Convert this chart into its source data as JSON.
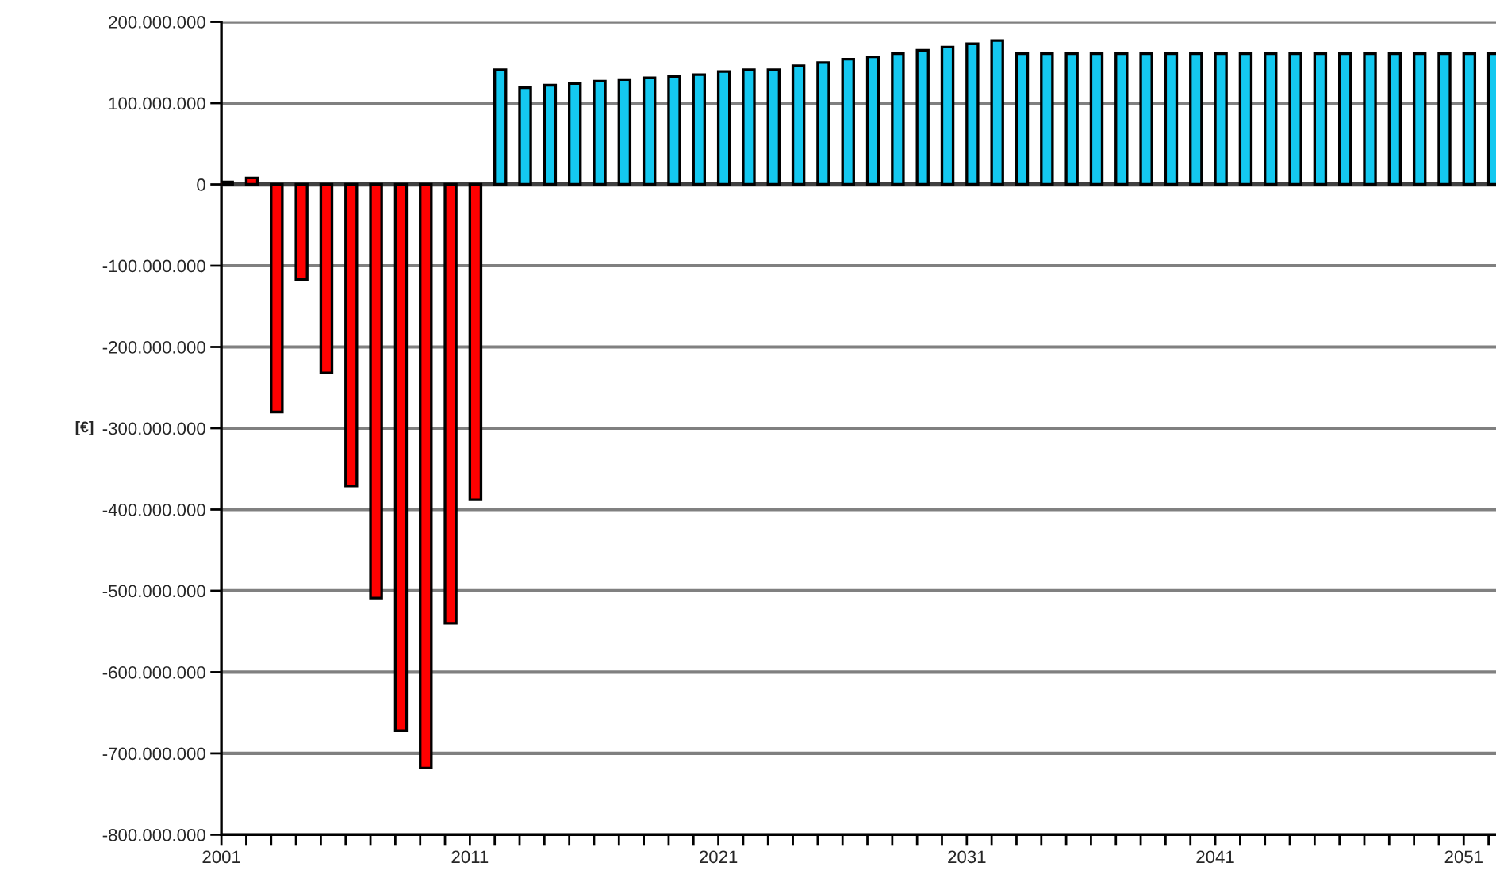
{
  "chart_data": {
    "type": "bar",
    "ylabel": "[€]",
    "x": [
      2001,
      2002,
      2003,
      2004,
      2005,
      2006,
      2007,
      2008,
      2009,
      2010,
      2011,
      2012,
      2013,
      2014,
      2015,
      2016,
      2017,
      2018,
      2019,
      2020,
      2021,
      2022,
      2023,
      2024,
      2025,
      2026,
      2027,
      2028,
      2029,
      2030,
      2031,
      2032,
      2033,
      2034,
      2035,
      2036,
      2037,
      2038,
      2039,
      2040,
      2041,
      2042,
      2043,
      2044,
      2045,
      2046,
      2047,
      2048,
      2049,
      2050,
      2051,
      2052
    ],
    "values": [
      3000000,
      8000000,
      -280000000,
      -117000000,
      -232000000,
      -371000000,
      -509000000,
      -672000000,
      -718000000,
      -540000000,
      -388000000,
      141000000,
      119000000,
      122000000,
      124000000,
      127000000,
      129000000,
      131000000,
      133000000,
      135000000,
      139000000,
      141000000,
      141000000,
      146000000,
      150000000,
      154000000,
      157000000,
      161000000,
      165000000,
      169000000,
      173000000,
      177000000,
      161000000,
      161000000,
      161000000,
      161000000,
      161000000,
      161000000,
      161000000,
      161000000,
      161000000,
      161000000,
      161000000,
      161000000,
      161000000,
      161000000,
      161000000,
      161000000,
      161000000,
      161000000,
      161000000,
      161000000
    ],
    "colors": [
      "#ff0000",
      "#ff0000",
      "#ff0000",
      "#ff0000",
      "#ff0000",
      "#ff0000",
      "#ff0000",
      "#ff0000",
      "#ff0000",
      "#ff0000",
      "#ff0000",
      "#14c8f0",
      "#14c8f0",
      "#14c8f0",
      "#14c8f0",
      "#14c8f0",
      "#14c8f0",
      "#14c8f0",
      "#14c8f0",
      "#14c8f0",
      "#14c8f0",
      "#14c8f0",
      "#14c8f0",
      "#14c8f0",
      "#14c8f0",
      "#14c8f0",
      "#14c8f0",
      "#14c8f0",
      "#14c8f0",
      "#14c8f0",
      "#14c8f0",
      "#14c8f0",
      "#14c8f0",
      "#14c8f0",
      "#14c8f0",
      "#14c8f0",
      "#14c8f0",
      "#14c8f0",
      "#14c8f0",
      "#14c8f0",
      "#14c8f0",
      "#14c8f0",
      "#14c8f0",
      "#14c8f0",
      "#14c8f0",
      "#14c8f0",
      "#14c8f0",
      "#14c8f0",
      "#14c8f0",
      "#14c8f0",
      "#14c8f0",
      "#14c8f0"
    ],
    "xlim": [
      2001,
      2052.3
    ],
    "xticks": [
      2001,
      {
        "value": 2002,
        "label": null
      },
      {
        "value": 2003,
        "label": null
      },
      {
        "value": 2004,
        "label": null
      },
      {
        "value": 2005,
        "label": null
      },
      {
        "value": 2006,
        "label": null
      },
      {
        "value": 2007,
        "label": null
      },
      {
        "value": 2008,
        "label": null
      },
      {
        "value": 2009,
        "label": null
      },
      {
        "value": 2010,
        "label": null
      },
      2011,
      {
        "value": 2012,
        "label": null
      },
      {
        "value": 2013,
        "label": null
      },
      {
        "value": 2014,
        "label": null
      },
      {
        "value": 2015,
        "label": null
      },
      {
        "value": 2016,
        "label": null
      },
      {
        "value": 2017,
        "label": null
      },
      {
        "value": 2018,
        "label": null
      },
      {
        "value": 2019,
        "label": null
      },
      {
        "value": 2020,
        "label": null
      },
      2021,
      {
        "value": 2022,
        "label": null
      },
      {
        "value": 2023,
        "label": null
      },
      {
        "value": 2024,
        "label": null
      },
      {
        "value": 2025,
        "label": null
      },
      {
        "value": 2026,
        "label": null
      },
      {
        "value": 2027,
        "label": null
      },
      {
        "value": 2028,
        "label": null
      },
      {
        "value": 2029,
        "label": null
      },
      {
        "value": 2030,
        "label": null
      },
      2031,
      {
        "value": 2032,
        "label": null
      },
      {
        "value": 2033,
        "label": null
      },
      {
        "value": 2034,
        "label": null
      },
      {
        "value": 2035,
        "label": null
      },
      {
        "value": 2036,
        "label": null
      },
      {
        "value": 2037,
        "label": null
      },
      {
        "value": 2038,
        "label": null
      },
      {
        "value": 2039,
        "label": null
      },
      {
        "value": 2040,
        "label": null
      },
      2041,
      {
        "value": 2042,
        "label": null
      },
      {
        "value": 2043,
        "label": null
      },
      {
        "value": 2044,
        "label": null
      },
      {
        "value": 2045,
        "label": null
      },
      {
        "value": 2046,
        "label": null
      },
      {
        "value": 2047,
        "label": null
      },
      {
        "value": 2048,
        "label": null
      },
      {
        "value": 2049,
        "label": null
      },
      {
        "value": 2050,
        "label": null
      },
      2051,
      {
        "value": 2052,
        "label": null
      }
    ],
    "ylim": [
      -800000000,
      200000000
    ],
    "yticks": [
      {
        "value": -800000000,
        "label": "-800.000.000"
      },
      {
        "value": -700000000,
        "label": "-700.000.000"
      },
      {
        "value": -600000000,
        "label": "-600.000.000"
      },
      {
        "value": -500000000,
        "label": "-500.000.000"
      },
      {
        "value": -400000000,
        "label": "-400.000.000"
      },
      {
        "value": -300000000,
        "label": "-300.000.000"
      },
      {
        "value": -200000000,
        "label": "-200.000.000"
      },
      {
        "value": -100000000,
        "label": "-100.000.000"
      },
      0,
      {
        "value": 100000000,
        "label": "100.000.000"
      },
      {
        "value": 200000000,
        "label": "200.000.000"
      }
    ],
    "grid": "y",
    "legend": false
  }
}
